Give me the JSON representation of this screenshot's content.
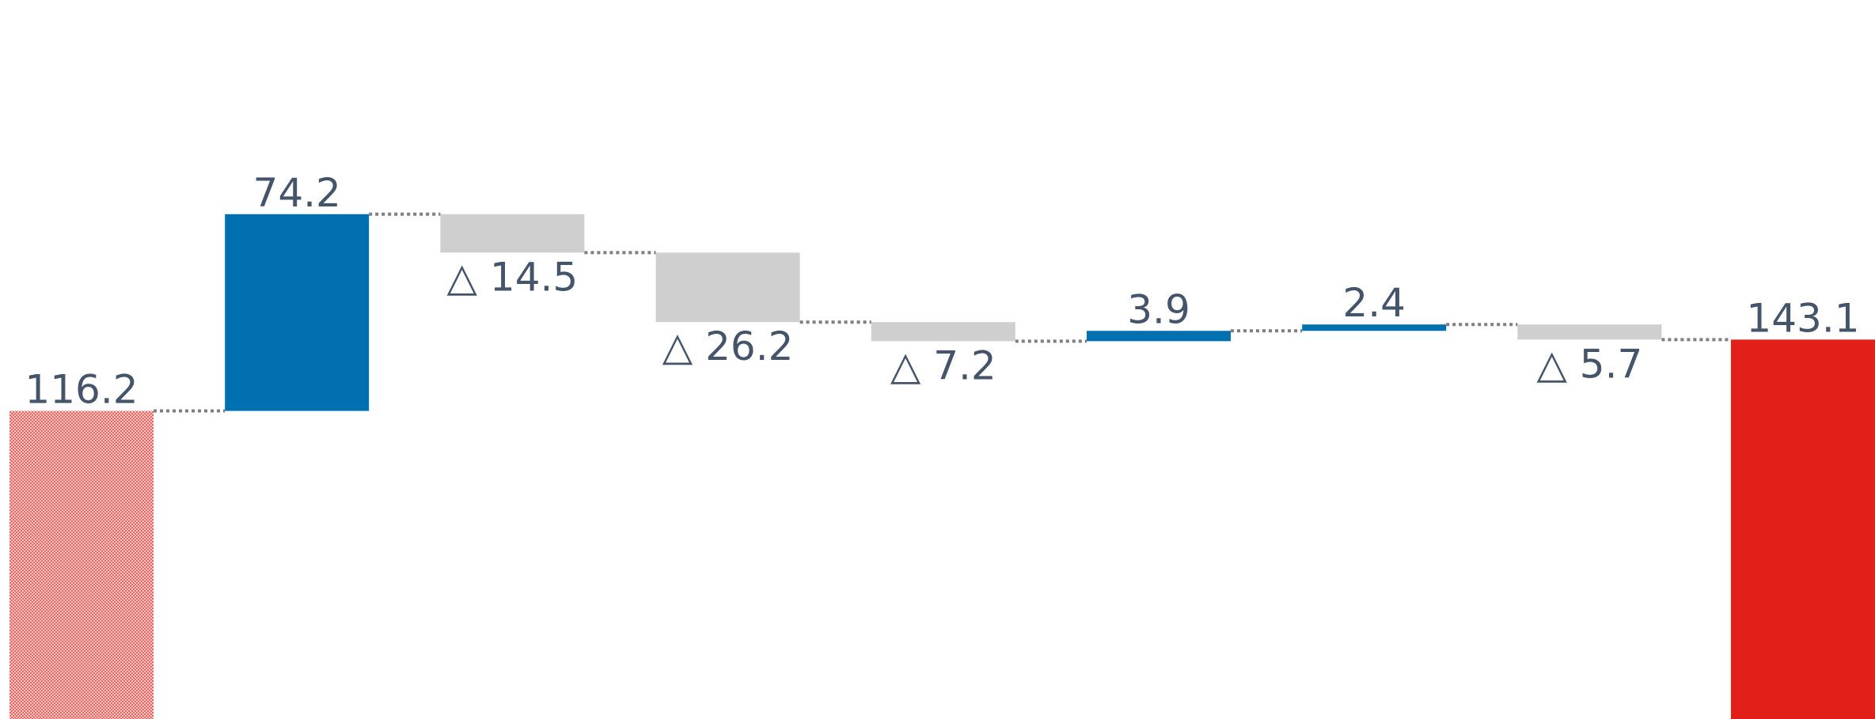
{
  "chart_data": {
    "type": "bar",
    "subtype": "waterfall",
    "title": "",
    "xlabel": "",
    "ylabel": "",
    "ylim": [
      0,
      260
    ],
    "grid": false,
    "legend": "none",
    "colors": {
      "total_start": "#e8a0a0",
      "total_start_pattern": "#e31f1a",
      "increase": "#0070b0",
      "decrease": "#d0cfcf",
      "total_end": "#e31f1a",
      "label": "#44546a",
      "connector": "#7f7f7f"
    },
    "steps": [
      {
        "kind": "total",
        "value": 116.2,
        "label": "116.2",
        "style": "hatched"
      },
      {
        "kind": "increase",
        "value": 74.2,
        "label": "74.2"
      },
      {
        "kind": "decrease",
        "value": -14.5,
        "label": "△ 14.5"
      },
      {
        "kind": "decrease",
        "value": -26.2,
        "label": "△ 26.2"
      },
      {
        "kind": "decrease",
        "value": -7.2,
        "label": "△ 7.2"
      },
      {
        "kind": "increase",
        "value": 3.9,
        "label": "3.9"
      },
      {
        "kind": "increase",
        "value": 2.4,
        "label": "2.4"
      },
      {
        "kind": "decrease",
        "value": -5.7,
        "label": "△ 5.7"
      },
      {
        "kind": "total",
        "value": 143.1,
        "label": "143.1",
        "style": "solid"
      }
    ]
  }
}
